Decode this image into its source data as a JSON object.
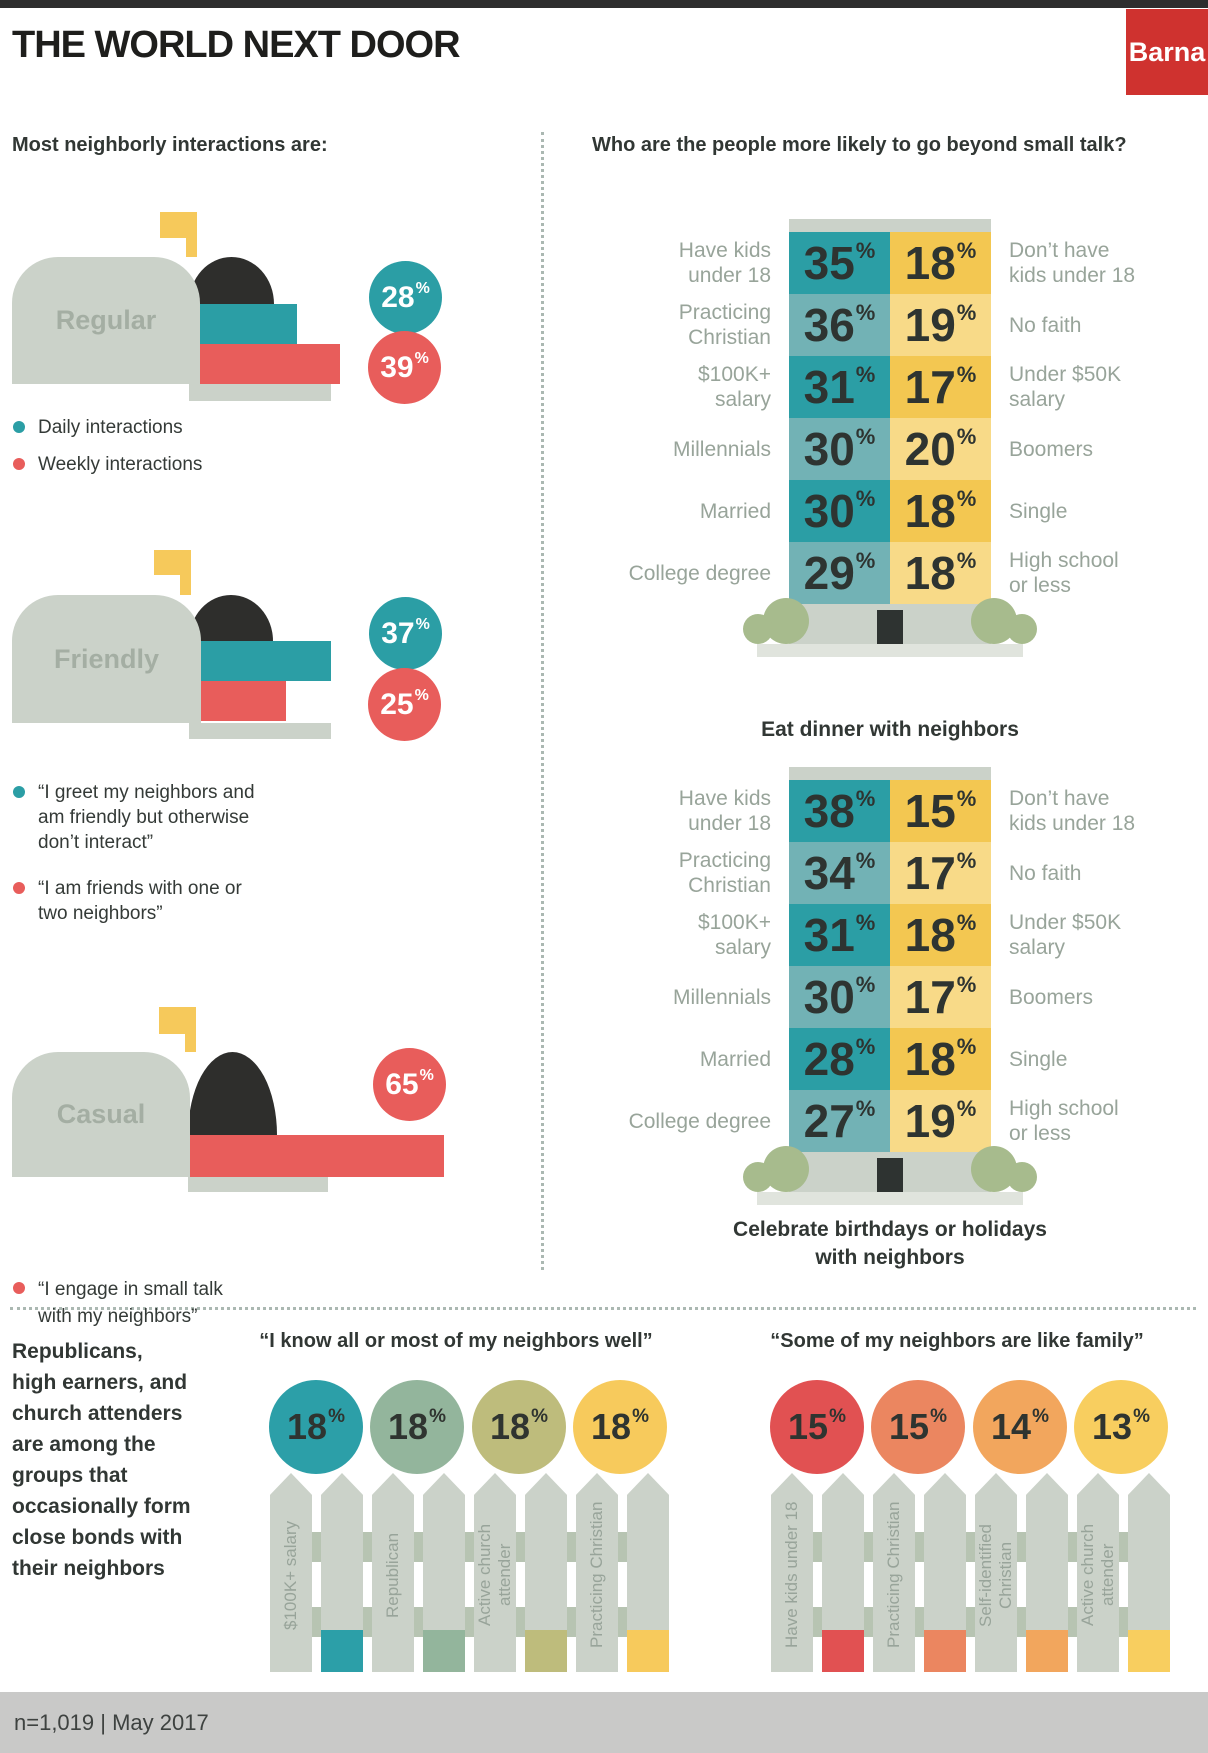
{
  "header": {
    "title": "THE WORLD NEXT DOOR",
    "brand": "Barna"
  },
  "left_section": {
    "heading": "Most neighborly interactions are:",
    "mailboxes": [
      {
        "label": "Regular",
        "stats": [
          {
            "value": "28",
            "color": "#2b9ea5"
          },
          {
            "value": "39",
            "color": "#e85d5b"
          }
        ],
        "legend": [
          {
            "color": "#2b9ea5",
            "text": "Daily interactions"
          },
          {
            "color": "#e85d5b",
            "text": "Weekly interactions"
          }
        ]
      },
      {
        "label": "Friendly",
        "stats": [
          {
            "value": "37",
            "color": "#2b9ea5"
          },
          {
            "value": "25",
            "color": "#e85d5b"
          }
        ],
        "legend": [
          {
            "color": "#2b9ea5",
            "text": "“I greet my neighbors and\nam friendly but otherwise\ndon’t interact”"
          },
          {
            "color": "#e85d5b",
            "text": "“I am friends with one or\ntwo neighbors”"
          }
        ]
      },
      {
        "label": "Casual",
        "stats": [
          {
            "value": "65",
            "color": "#e85d5b"
          }
        ],
        "legend": [
          {
            "color": "#e85d5b",
            "text": "“I engage in small talk\nwith my neighbors”"
          }
        ]
      }
    ]
  },
  "right_section": {
    "heading": "Who are the people more likely to go beyond small talk?",
    "buildings": [
      {
        "caption": "Eat dinner with neighbors",
        "rows": [
          {
            "left_label": "Have kids\nunder 18",
            "left_value": "35",
            "right_value": "18",
            "right_label": "Don’t have\nkids under 18"
          },
          {
            "left_label": "Practicing\nChristian",
            "left_value": "36",
            "right_value": "19",
            "right_label": "No faith"
          },
          {
            "left_label": "$100K+\nsalary",
            "left_value": "31",
            "right_value": "17",
            "right_label": "Under $50K\nsalary"
          },
          {
            "left_label": "Millennials",
            "left_value": "30",
            "right_value": "20",
            "right_label": "Boomers"
          },
          {
            "left_label": "Married",
            "left_value": "30",
            "right_value": "18",
            "right_label": "Single"
          },
          {
            "left_label": "College degree",
            "left_value": "29",
            "right_value": "18",
            "right_label": "High school\nor less"
          }
        ]
      },
      {
        "caption": "Celebrate birthdays or holidays\nwith neighbors",
        "rows": [
          {
            "left_label": "Have kids\nunder 18",
            "left_value": "38",
            "right_value": "15",
            "right_label": "Don’t have\nkids under 18"
          },
          {
            "left_label": "Practicing\nChristian",
            "left_value": "34",
            "right_value": "17",
            "right_label": "No faith"
          },
          {
            "left_label": "$100K+\nsalary",
            "left_value": "31",
            "right_value": "18",
            "right_label": "Under $50K\nsalary"
          },
          {
            "left_label": "Millennials",
            "left_value": "30",
            "right_value": "17",
            "right_label": "Boomers"
          },
          {
            "left_label": "Married",
            "left_value": "28",
            "right_value": "18",
            "right_label": "Single"
          },
          {
            "left_label": "College degree",
            "left_value": "27",
            "right_value": "19",
            "right_label": "High school\nor less"
          }
        ]
      }
    ]
  },
  "bottom_section": {
    "note": "Republicans,\nhigh earners, and\nchurch attenders\nare among the\ngroups that\noccasionally form\nclose bonds with\ntheir neighbors",
    "fences": [
      {
        "title": "“I know all or most of my neighbors well”",
        "items": [
          {
            "value": "18",
            "label": "$100K+ salary",
            "color": "#2c9fa8"
          },
          {
            "value": "18",
            "label": "Republican",
            "color": "#93b59c"
          },
          {
            "value": "18",
            "label": "Active church\nattender",
            "color": "#bebc7c"
          },
          {
            "value": "18",
            "label": "Practicing Christian",
            "color": "#f7ca5c"
          }
        ]
      },
      {
        "title": "“Some of my neighbors are like family”",
        "items": [
          {
            "value": "15",
            "label": "Have kids under 18",
            "color": "#e15152"
          },
          {
            "value": "15",
            "label": "Practicing Christian",
            "color": "#eb8660"
          },
          {
            "value": "14",
            "label": "Self-identified\nChristian",
            "color": "#f2a65d"
          },
          {
            "value": "13",
            "label": "Active church\nattender",
            "color": "#f8ce5f"
          }
        ]
      }
    ]
  },
  "footer": {
    "text": "n=1,019 | May 2017"
  },
  "meta": {
    "percent_sign": "%"
  },
  "colors": {
    "teal": "#2b9ea5",
    "teal_light": "#72b2b5",
    "red": "#e85d5b",
    "yellow": "#f3c751",
    "yellow_light": "#f8da88",
    "flag_yellow": "#f6c95b",
    "gray_shape": "#cbd2c9",
    "rail_gray": "#b7c4b2",
    "ground_gray": "#e0e4dd",
    "bush_green": "#a7bb8d",
    "door_dark": "#2e3331",
    "brand_red": "#cf322f",
    "label_gray": "#98a49a",
    "text_dark": "#313734",
    "footer_gray": "#c9c9c8"
  },
  "chart_data": [
    {
      "type": "bar",
      "title": "Most neighborly interactions are: Regular",
      "categories": [
        "Daily interactions",
        "Weekly interactions"
      ],
      "values": [
        28,
        39
      ],
      "unit": "%"
    },
    {
      "type": "bar",
      "title": "Most neighborly interactions are: Friendly",
      "categories": [
        "I greet my neighbors and am friendly but otherwise don’t interact",
        "I am friends with one or two neighbors"
      ],
      "values": [
        37,
        25
      ],
      "unit": "%"
    },
    {
      "type": "bar",
      "title": "Most neighborly interactions are: Casual",
      "categories": [
        "I engage in small talk with my neighbors"
      ],
      "values": [
        65
      ],
      "unit": "%"
    },
    {
      "type": "table",
      "title": "Eat dinner with neighbors",
      "columns": [
        "more likely group",
        "more likely %",
        "less likely %",
        "less likely group"
      ],
      "rows": [
        [
          "Have kids under 18",
          35,
          18,
          "Don’t have kids under 18"
        ],
        [
          "Practicing Christian",
          36,
          19,
          "No faith"
        ],
        [
          "$100K+ salary",
          31,
          17,
          "Under $50K salary"
        ],
        [
          "Millennials",
          30,
          20,
          "Boomers"
        ],
        [
          "Married",
          30,
          18,
          "Single"
        ],
        [
          "College degree",
          29,
          18,
          "High school or less"
        ]
      ]
    },
    {
      "type": "table",
      "title": "Celebrate birthdays or holidays with neighbors",
      "columns": [
        "more likely group",
        "more likely %",
        "less likely %",
        "less likely group"
      ],
      "rows": [
        [
          "Have kids under 18",
          38,
          15,
          "Don’t have kids under 18"
        ],
        [
          "Practicing Christian",
          34,
          17,
          "No faith"
        ],
        [
          "$100K+ salary",
          31,
          18,
          "Under $50K salary"
        ],
        [
          "Millennials",
          30,
          17,
          "Boomers"
        ],
        [
          "Married",
          28,
          18,
          "Single"
        ],
        [
          "College degree",
          27,
          19,
          "High school or less"
        ]
      ]
    },
    {
      "type": "bar",
      "title": "“I know all or most of my neighbors well”",
      "categories": [
        "$100K+ salary",
        "Republican",
        "Active church attender",
        "Practicing Christian"
      ],
      "values": [
        18,
        18,
        18,
        18
      ],
      "unit": "%"
    },
    {
      "type": "bar",
      "title": "“Some of my neighbors are like family”",
      "categories": [
        "Have kids under 18",
        "Practicing Christian",
        "Self-identified Christian",
        "Active church attender"
      ],
      "values": [
        15,
        15,
        14,
        13
      ],
      "unit": "%"
    }
  ]
}
